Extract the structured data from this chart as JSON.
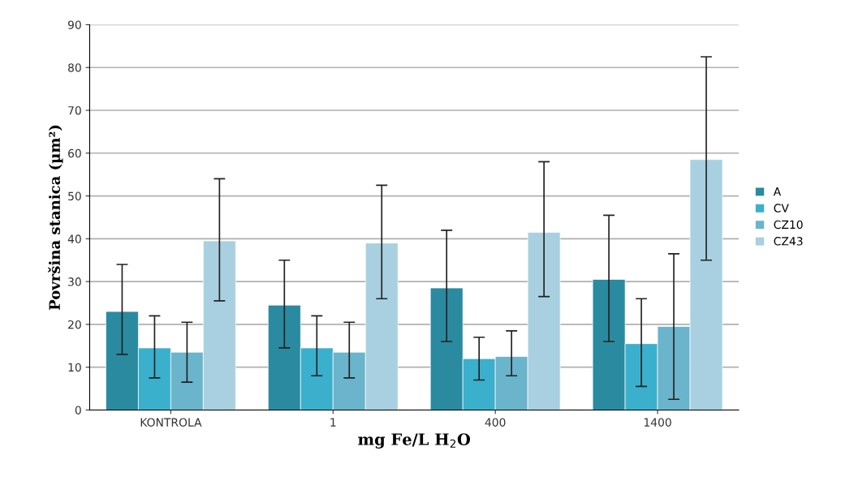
{
  "chart_data": {
    "type": "bar",
    "xlabel": "mg Fe/L H$_{2}$O",
    "ylabel": "Površina stanica (µm²)",
    "categories": [
      "KONTROLA",
      "1",
      "400",
      "1400"
    ],
    "series": [
      {
        "name": "A",
        "color": "#2a8aa0",
        "values": [
          23,
          24.5,
          28.5,
          30.5
        ],
        "errors": [
          [
            13,
            34
          ],
          [
            14.5,
            35
          ],
          [
            16,
            42
          ],
          [
            16,
            45.5
          ]
        ]
      },
      {
        "name": "CV",
        "color": "#3ab0cc",
        "values": [
          14.5,
          14.5,
          12,
          15.5
        ],
        "errors": [
          [
            7.5,
            22
          ],
          [
            8,
            22
          ],
          [
            7,
            17
          ],
          [
            5.5,
            26
          ]
        ]
      },
      {
        "name": "CZ10",
        "color": "#6ab4cc",
        "values": [
          13.5,
          13.5,
          12.5,
          19.5
        ],
        "errors": [
          [
            6.5,
            20.5
          ],
          [
            7.5,
            20.5
          ],
          [
            8,
            18.5
          ],
          [
            2.5,
            36.5
          ]
        ]
      },
      {
        "name": "CZ43",
        "color": "#a8d0e0",
        "values": [
          39.5,
          39,
          41.5,
          58.5
        ],
        "errors": [
          [
            25.5,
            54
          ],
          [
            26,
            52.5
          ],
          [
            26.5,
            58
          ],
          [
            35,
            82.5
          ]
        ]
      }
    ],
    "ylim": [
      0,
      90
    ],
    "yticks": [
      0,
      10,
      20,
      30,
      40,
      50,
      60,
      70,
      80,
      90
    ],
    "grid": "y",
    "legend": "right"
  }
}
